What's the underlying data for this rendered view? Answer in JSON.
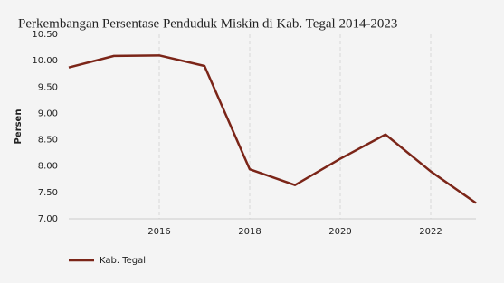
{
  "chart_data": {
    "type": "line",
    "title": "Perkembangan Persentase Penduduk Miskin  di Kab. Tegal 2014-2023",
    "ylabel": "Persen",
    "x": [
      2014,
      2015,
      2016,
      2017,
      2018,
      2019,
      2020,
      2021,
      2022,
      2023
    ],
    "series": [
      {
        "name": "Kab. Tegal",
        "color": "#7b2518",
        "values": [
          9.87,
          10.09,
          10.1,
          9.9,
          7.94,
          7.64,
          8.14,
          8.6,
          7.9,
          7.3
        ]
      }
    ],
    "xlim": [
      2014,
      2023
    ],
    "xticks": [
      2016,
      2018,
      2020,
      2022
    ],
    "ylim": [
      7,
      10.5
    ],
    "yticks": [
      {
        "value": 7,
        "label": "7.00"
      },
      {
        "value": 7.5,
        "label": "7.50"
      },
      {
        "value": 8,
        "label": "8.00"
      },
      {
        "value": 8.5,
        "label": "8.50"
      },
      {
        "value": 9,
        "label": "9.00"
      },
      {
        "value": 9.5,
        "label": "9.50"
      },
      {
        "value": 10,
        "label": "10.00"
      },
      {
        "value": 10.5,
        "label": "10.50"
      }
    ],
    "grid": true,
    "legend": "bottom-left"
  }
}
